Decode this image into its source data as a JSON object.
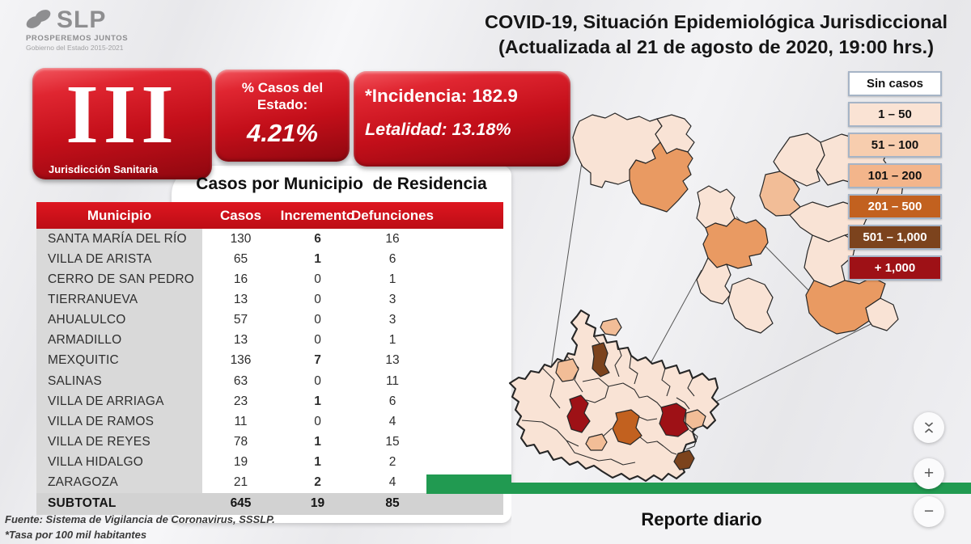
{
  "logo": {
    "slp": "SLP",
    "tagline": "PROSPEREMOS JUNTOS",
    "subline": "Gobierno del Estado 2015-2021"
  },
  "header": {
    "title_line1": "COVID-19, Situación Epidemiológica Jurisdiccional",
    "title_line2": "(Actualizada al 21 de agosto de 2020, 19:00 hrs.)"
  },
  "jurisdiction": {
    "number": "III",
    "label": "Jurisdicción Sanitaria"
  },
  "stats": {
    "pct_label_line1": "% Casos del",
    "pct_label_line2": "Estado:",
    "pct_value": "4.21%",
    "incidencia": "*Incidencia: 182.9",
    "letalidad": "Letalidad: 13.18%"
  },
  "table": {
    "title": "Casos por Municipio  de Residencia",
    "columns": [
      "Municipio",
      "Casos",
      "Incremento",
      "Defunciones"
    ],
    "rows": [
      {
        "municipio": "SANTA MARÍA DEL RÍO",
        "casos": "130",
        "incremento": "6",
        "defunciones": "16"
      },
      {
        "municipio": "VILLA DE ARISTA",
        "casos": "65",
        "incremento": "1",
        "defunciones": "6"
      },
      {
        "municipio": "CERRO DE SAN PEDRO",
        "casos": "16",
        "incremento": "0",
        "defunciones": "1"
      },
      {
        "municipio": "TIERRANUEVA",
        "casos": "13",
        "incremento": "0",
        "defunciones": "3"
      },
      {
        "municipio": "AHUALULCO",
        "casos": "57",
        "incremento": "0",
        "defunciones": "3"
      },
      {
        "municipio": "ARMADILLO",
        "casos": "13",
        "incremento": "0",
        "defunciones": "1"
      },
      {
        "municipio": "MEXQUITIC",
        "casos": "136",
        "incremento": "7",
        "defunciones": "13"
      },
      {
        "municipio": "SALINAS",
        "casos": "63",
        "incremento": "0",
        "defunciones": "11"
      },
      {
        "municipio": "VILLA DE ARRIAGA",
        "casos": "23",
        "incremento": "1",
        "defunciones": "6"
      },
      {
        "municipio": "VILLA DE RAMOS",
        "casos": "11",
        "incremento": "0",
        "defunciones": "4"
      },
      {
        "municipio": "VILLA DE REYES",
        "casos": "78",
        "incremento": "1",
        "defunciones": "15"
      },
      {
        "municipio": "VILLA HIDALGO",
        "casos": "19",
        "incremento": "1",
        "defunciones": "2"
      },
      {
        "municipio": "ZARAGOZA",
        "casos": "21",
        "incremento": "2",
        "defunciones": "4"
      }
    ],
    "subtotal": {
      "municipio": "SUBTOTAL",
      "casos": "645",
      "incremento": "19",
      "defunciones": "85"
    }
  },
  "footnotes": {
    "fuente": "Fuente: Sistema de Vigilancia de Coronavirus, SSSLP.",
    "tasa": "*Tasa por 100 mil habitantes"
  },
  "legend": {
    "items": [
      {
        "label": "Sin casos",
        "color": "#ffffff",
        "text": "#111111"
      },
      {
        "label": "1 – 50",
        "color": "#fae3d4",
        "text": "#111111"
      },
      {
        "label": "51 – 100",
        "color": "#f7cdae",
        "text": "#111111"
      },
      {
        "label": "101 – 200",
        "color": "#f3b58b",
        "text": "#111111"
      },
      {
        "label": "201 – 500",
        "color": "#c2611f",
        "text": "#ffffff"
      },
      {
        "label": "501 – 1,000",
        "color": "#7c431d",
        "text": "#ffffff"
      },
      {
        "label": "+ 1,000",
        "color": "#9e1116",
        "text": "#ffffff"
      }
    ]
  },
  "footer": {
    "report_label": "Reporte diario"
  },
  "viewer_controls": {
    "zoom_in": "+",
    "zoom_out": "−"
  },
  "colors": {
    "accent_red": "#c40f1a",
    "green_bar": "#219a51",
    "header_row": "#cc1016",
    "row_gray": "#d9d9d9"
  }
}
